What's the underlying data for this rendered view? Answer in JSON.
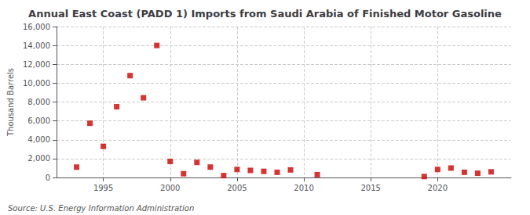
{
  "chart_data": {
    "type": "scatter",
    "title": "Annual East Coast (PADD 1) Imports from Saudi Arabia of Finished Motor Gasoline",
    "ylabel": "Thousand Barrels",
    "annotations": [
      "Source: U.S. Energy Information Administration"
    ],
    "x": [
      1993,
      1994,
      1995,
      1996,
      1997,
      1998,
      1999,
      2000,
      2001,
      2002,
      2003,
      2004,
      2005,
      2006,
      2007,
      2008,
      2009,
      2011,
      2019,
      2020,
      2021,
      2022,
      2023,
      2024
    ],
    "values": [
      1100,
      5750,
      3300,
      7500,
      10800,
      8450,
      14000,
      1700,
      400,
      1600,
      1100,
      200,
      850,
      750,
      650,
      550,
      800,
      300,
      100,
      850,
      1000,
      550,
      450,
      600
    ],
    "color": "#cc0000",
    "marker": "square",
    "xlim": [
      1991.5,
      2025.5
    ],
    "xticks": [
      1995,
      2000,
      2005,
      2010,
      2015,
      2020
    ],
    "ylim": [
      0,
      16000
    ],
    "yticks": [
      0,
      {
        "value": 2000,
        "label": "2,000"
      },
      {
        "value": 4000,
        "label": "4,000"
      },
      {
        "value": 6000,
        "label": "6,000"
      },
      {
        "value": 8000,
        "label": "8,000"
      },
      {
        "value": 10000,
        "label": "10,000"
      },
      {
        "value": 12000,
        "label": "12,000"
      },
      {
        "value": 14000,
        "label": "14,000"
      },
      {
        "value": 16000,
        "label": "16,000"
      }
    ],
    "grid": true
  }
}
